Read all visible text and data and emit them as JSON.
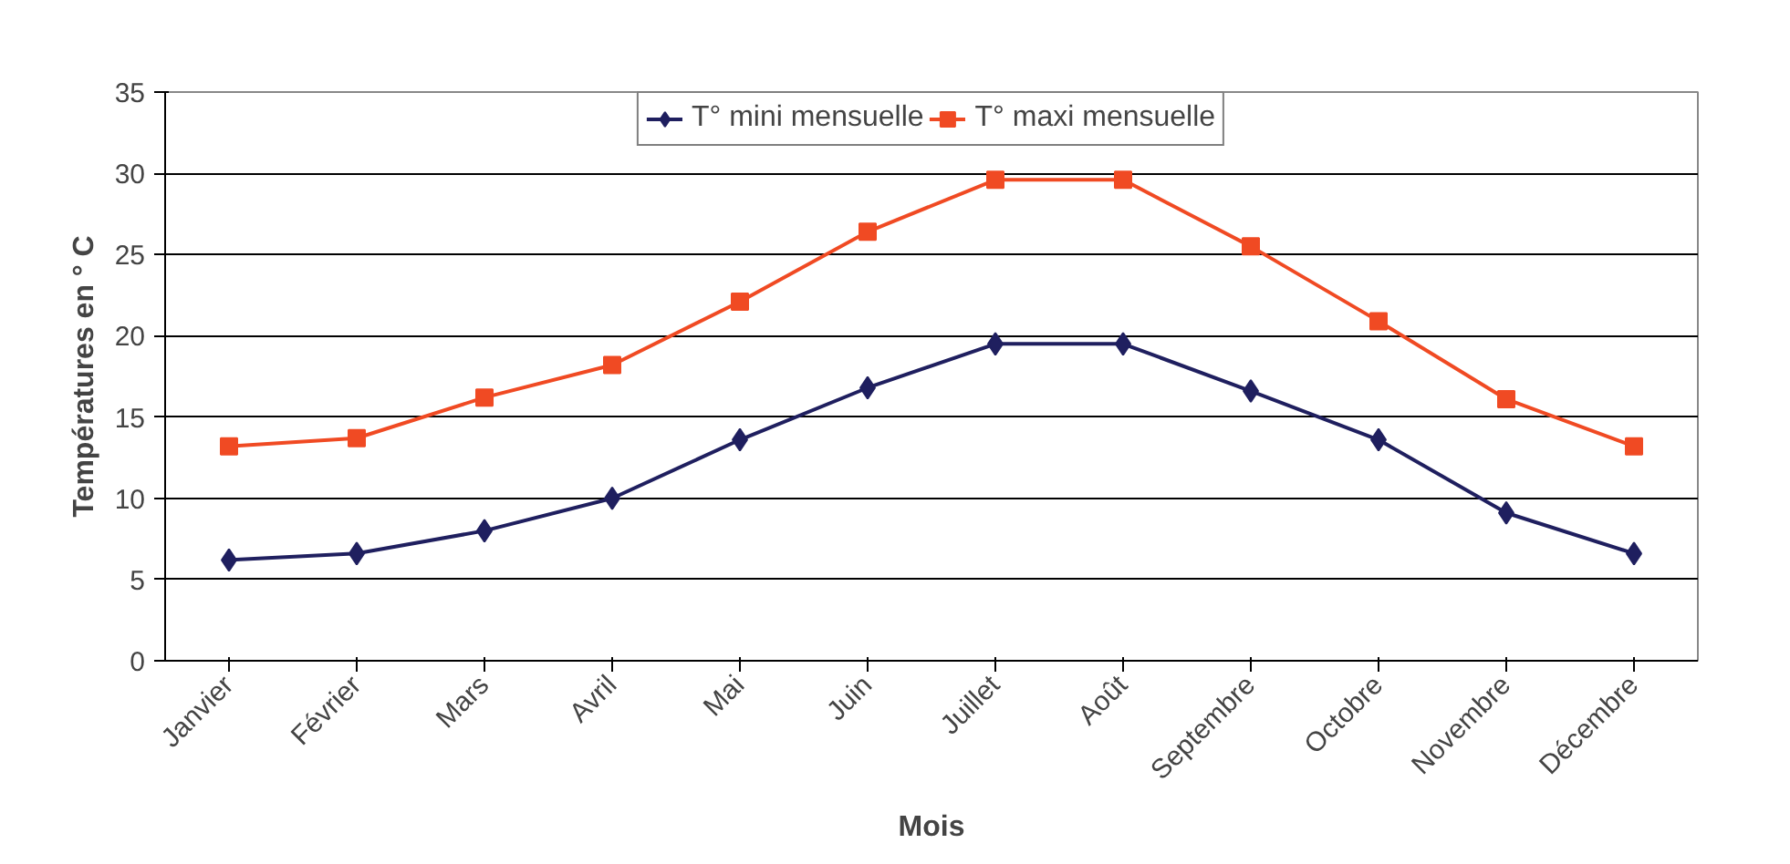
{
  "chart_data": {
    "type": "line",
    "xlabel": "Mois",
    "ylabel": "Températures en ° C",
    "categories": [
      "Janvier",
      "Février",
      "Mars",
      "Avril",
      "Mai",
      "Juin",
      "Juillet",
      "Août",
      "Septembre",
      "Octobre",
      "Novembre",
      "Décembre"
    ],
    "series": [
      {
        "name": "T° mini mensuelle",
        "color": "#1f1f5f",
        "marker": "diamond",
        "values": [
          6.2,
          6.6,
          8,
          10,
          13.6,
          16.8,
          19.5,
          19.5,
          16.6,
          13.6,
          9.1,
          6.6
        ]
      },
      {
        "name": "T° maxi mensuelle",
        "color": "#f04a23",
        "marker": "square",
        "values": [
          13.2,
          13.7,
          16.2,
          18.2,
          22.1,
          26.4,
          29.6,
          29.6,
          25.5,
          20.9,
          16.1,
          13.2
        ]
      }
    ],
    "ylim": [
      0,
      35
    ],
    "yticks": [
      0,
      5,
      10,
      15,
      20,
      25,
      30,
      35
    ],
    "grid": "y",
    "legend": "top"
  }
}
